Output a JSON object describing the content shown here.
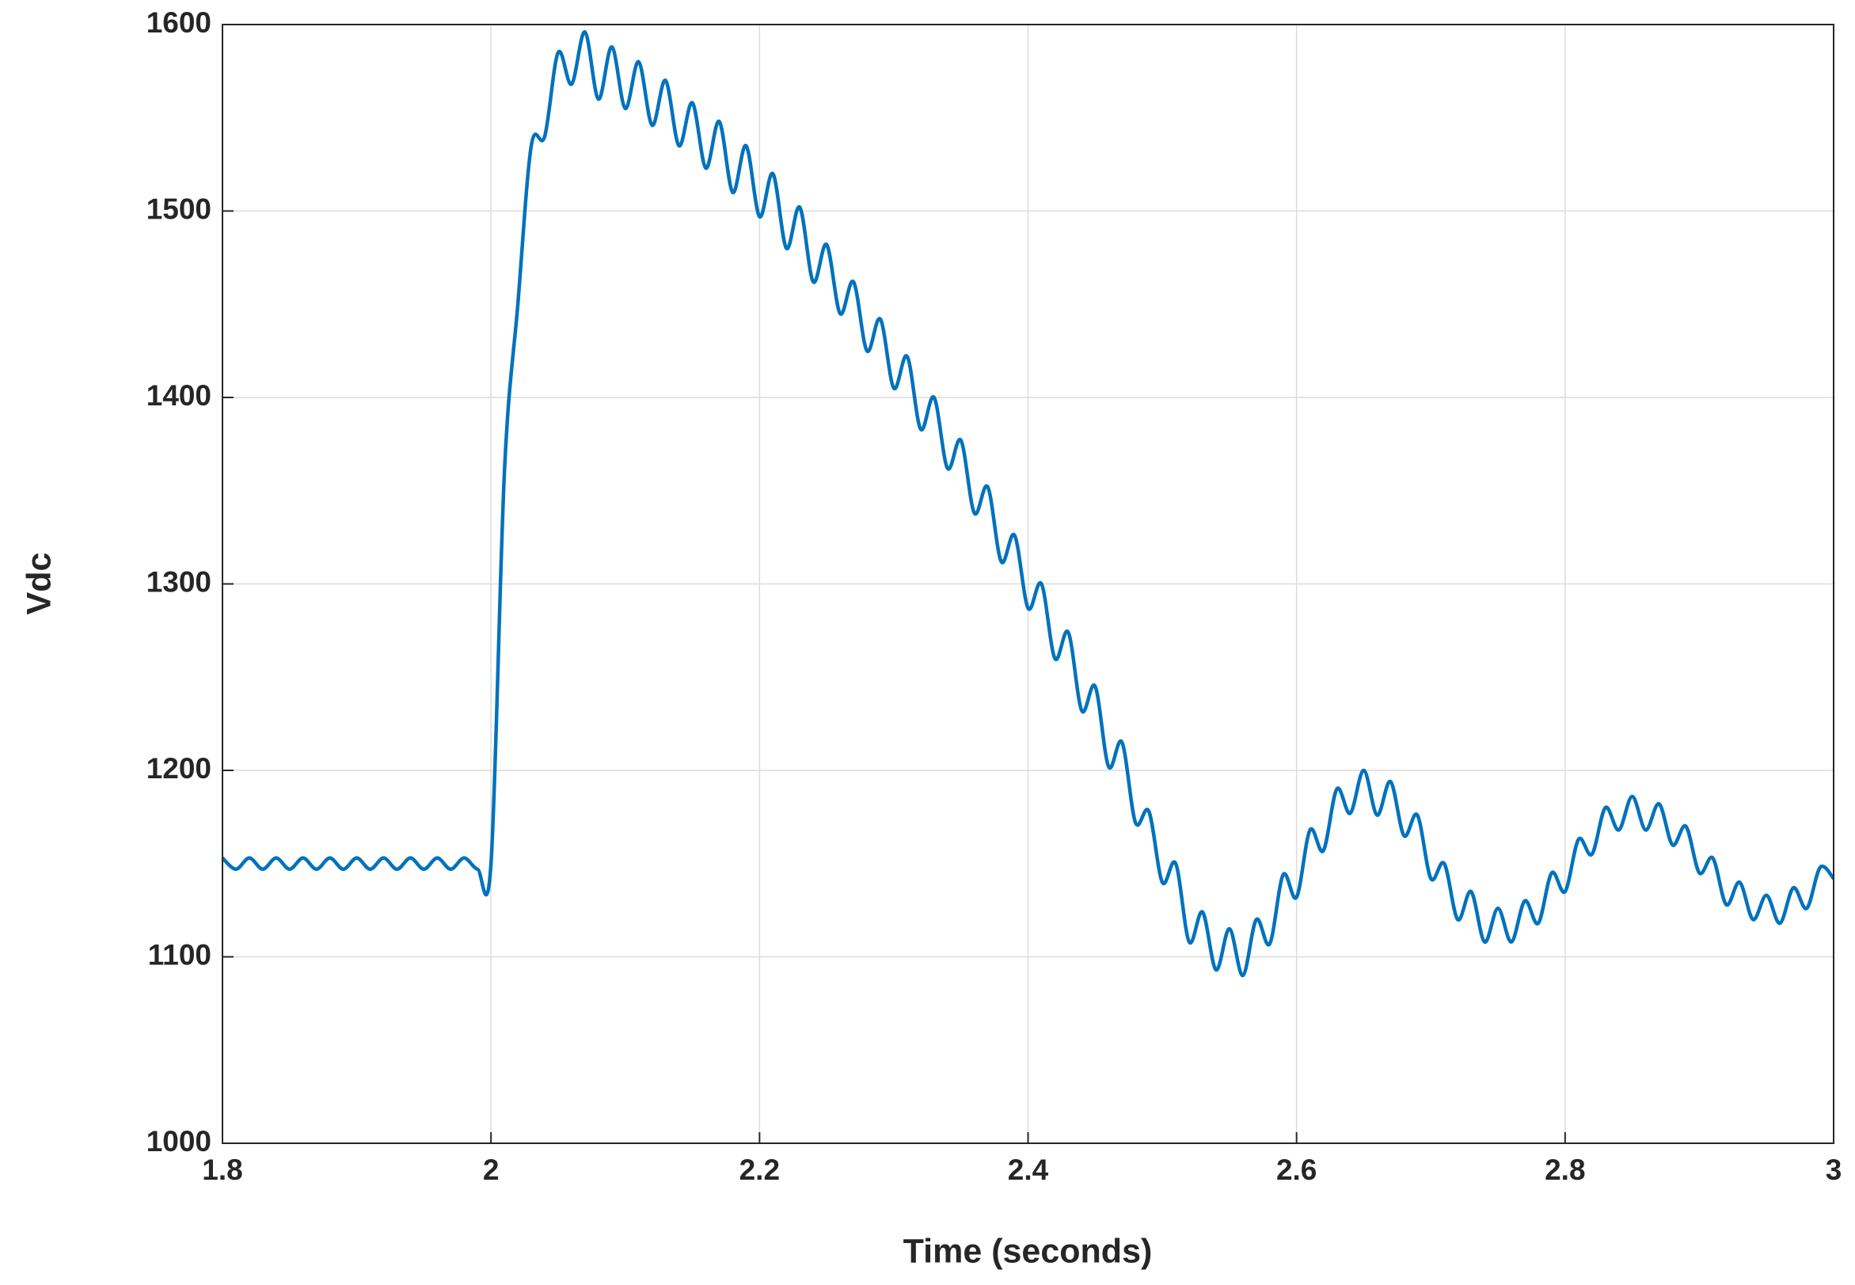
{
  "chart_data": {
    "type": "line",
    "xlabel": "Time (seconds)",
    "ylabel": "Vdc",
    "xlim": [
      1.8,
      3
    ],
    "ylim": [
      1000,
      1600
    ],
    "xticks": [
      1.8,
      2,
      2.2,
      2.4,
      2.6,
      2.8,
      3
    ],
    "yticks": [
      1000,
      1100,
      1200,
      1300,
      1400,
      1500,
      1600
    ],
    "grid": true,
    "x": [
      1.8,
      1.81,
      1.82,
      1.83,
      1.84,
      1.85,
      1.86,
      1.87,
      1.88,
      1.89,
      1.9,
      1.91,
      1.92,
      1.93,
      1.94,
      1.95,
      1.96,
      1.97,
      1.98,
      1.99,
      2.0,
      2.01,
      2.02,
      2.03,
      2.04,
      2.05,
      2.06,
      2.07,
      2.08,
      2.09,
      2.1,
      2.11,
      2.12,
      2.13,
      2.14,
      2.15,
      2.16,
      2.17,
      2.18,
      2.19,
      2.2,
      2.21,
      2.22,
      2.23,
      2.24,
      2.25,
      2.26,
      2.27,
      2.28,
      2.29,
      2.3,
      2.31,
      2.32,
      2.33,
      2.34,
      2.35,
      2.36,
      2.37,
      2.38,
      2.39,
      2.4,
      2.41,
      2.42,
      2.43,
      2.44,
      2.45,
      2.46,
      2.47,
      2.48,
      2.49,
      2.5,
      2.51,
      2.52,
      2.53,
      2.54,
      2.55,
      2.56,
      2.57,
      2.58,
      2.59,
      2.6,
      2.61,
      2.62,
      2.63,
      2.64,
      2.65,
      2.66,
      2.67,
      2.68,
      2.69,
      2.7,
      2.71,
      2.72,
      2.73,
      2.74,
      2.75,
      2.76,
      2.77,
      2.78,
      2.79,
      2.8,
      2.81,
      2.82,
      2.83,
      2.84,
      2.85,
      2.86,
      2.87,
      2.88,
      2.89,
      2.9,
      2.91,
      2.92,
      2.93,
      2.94,
      2.95,
      2.96,
      2.97,
      2.98,
      2.99,
      3.0
    ],
    "series": [
      {
        "color": "#0072bd",
        "values": [
          1153,
          1147,
          1153,
          1147,
          1153,
          1147,
          1153,
          1147,
          1153,
          1147,
          1153,
          1147,
          1153,
          1147,
          1153,
          1147,
          1153,
          1147,
          1153,
          1147,
          1150,
          1360,
          1450,
          1535,
          1540,
          1585,
          1568,
          1596,
          1560,
          1588,
          1555,
          1580,
          1546,
          1570,
          1535,
          1558,
          1523,
          1548,
          1510,
          1535,
          1497,
          1520,
          1480,
          1502,
          1462,
          1482,
          1445,
          1462,
          1425,
          1442,
          1405,
          1422,
          1383,
          1400,
          1362,
          1377,
          1338,
          1352,
          1312,
          1326,
          1287,
          1300,
          1260,
          1274,
          1232,
          1245,
          1202,
          1215,
          1172,
          1178,
          1140,
          1150,
          1108,
          1124,
          1093,
          1115,
          1090,
          1120,
          1107,
          1144,
          1132,
          1168,
          1157,
          1190,
          1177,
          1200,
          1176,
          1194,
          1165,
          1176,
          1142,
          1150,
          1120,
          1135,
          1108,
          1126,
          1108,
          1130,
          1118,
          1145,
          1135,
          1163,
          1155,
          1180,
          1168,
          1186,
          1168,
          1182,
          1160,
          1170,
          1145,
          1153,
          1128,
          1140,
          1120,
          1133,
          1118,
          1137,
          1126,
          1148,
          1142
        ]
      }
    ]
  }
}
